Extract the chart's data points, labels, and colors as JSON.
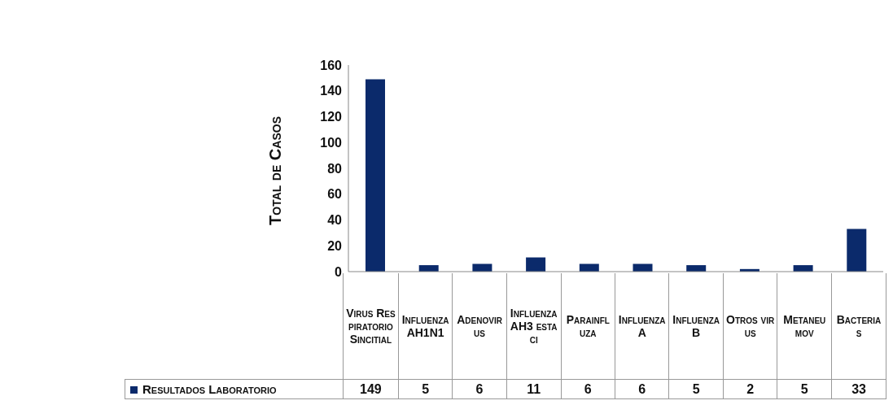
{
  "chart_data": {
    "type": "bar",
    "ylabel": "Total de Casos",
    "categories": [
      "Virus Respiratorio Sincitial",
      "Influenza AH1N1",
      "Adenovirus",
      "Influenza AH3 estaci",
      "Parainfluza",
      "Influenza A",
      "Influenza B",
      "Otros virus",
      "Metaneumov",
      "Bacterias"
    ],
    "series": [
      {
        "name": "Resultados Laboratorio",
        "color": "#0b2a6b",
        "values": [
          149,
          5,
          6,
          11,
          6,
          6,
          5,
          2,
          5,
          33
        ]
      }
    ],
    "ylim": [
      0,
      160
    ],
    "yticks": [
      0,
      20,
      40,
      60,
      80,
      100,
      120,
      140,
      160
    ],
    "grid": false,
    "legend": "bottom",
    "data_labels": true
  }
}
